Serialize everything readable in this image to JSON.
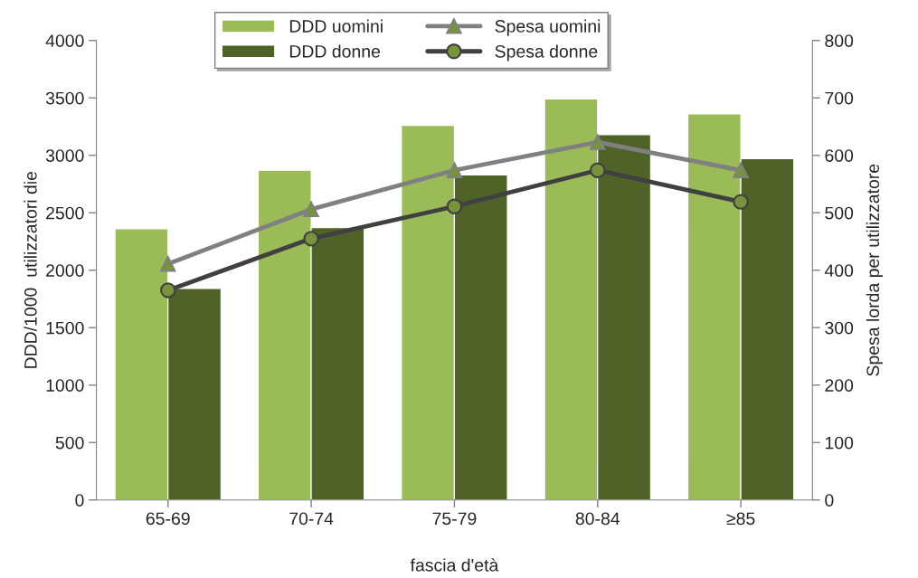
{
  "chart_data": {
    "type": "bar",
    "categories": [
      "65-69",
      "70-74",
      "75-79",
      "80-84",
      "≥85"
    ],
    "xlabel": "fascia d'età",
    "ylabel": "DDD/1000  utilizzatori die",
    "y2label": "Spesa lorda per utilizzatore",
    "series": [
      {
        "name": "DDD uomini",
        "color": "#9bbb59",
        "values": [
          2360,
          2870,
          3260,
          3490,
          3360
        ]
      },
      {
        "name": "DDD donne",
        "color": "#4f6228",
        "values": [
          1840,
          2370,
          2830,
          3180,
          2970
        ]
      },
      {
        "name": "Spesa uomini",
        "type": "line",
        "axis": "y2",
        "marker": "triangle",
        "color": "#808080",
        "values": [
          411,
          506,
          574,
          623,
          574
        ]
      },
      {
        "name": "Spesa donne",
        "type": "line",
        "axis": "y2",
        "marker": "circle",
        "color": "#404040",
        "values": [
          365,
          455,
          511,
          574,
          519
        ]
      }
    ],
    "ylim": [
      0,
      4000
    ],
    "yticks": [
      0,
      500,
      1000,
      1500,
      2000,
      2500,
      3000,
      3500,
      4000
    ],
    "y2lim": [
      0,
      800
    ],
    "y2ticks": [
      0,
      100,
      200,
      300,
      400,
      500,
      600,
      700,
      800
    ],
    "grid": false,
    "legend": "top"
  }
}
